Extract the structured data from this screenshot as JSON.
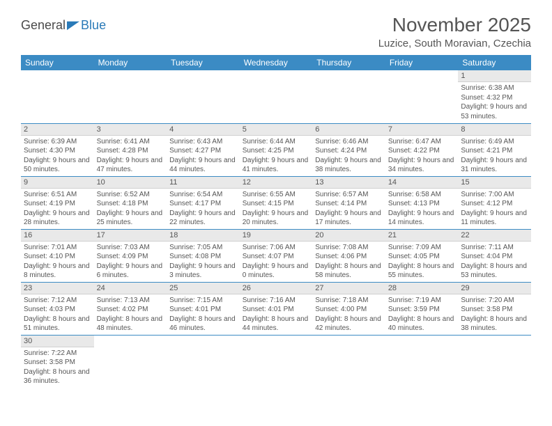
{
  "logo": {
    "text1": "General",
    "text2": "Blue"
  },
  "title": "November 2025",
  "location": "Luzice, South Moravian, Czechia",
  "colors": {
    "header_bg": "#3b8bc4",
    "header_text": "#ffffff",
    "daynum_bg": "#e9e9e9",
    "border": "#3b8bc4",
    "text": "#555555",
    "logo_blue": "#2a7ab8"
  },
  "weekdays": [
    "Sunday",
    "Monday",
    "Tuesday",
    "Wednesday",
    "Thursday",
    "Friday",
    "Saturday"
  ],
  "weeks": [
    [
      null,
      null,
      null,
      null,
      null,
      null,
      {
        "n": "1",
        "sr": "6:38 AM",
        "ss": "4:32 PM",
        "dl": "9 hours and 53 minutes."
      }
    ],
    [
      {
        "n": "2",
        "sr": "6:39 AM",
        "ss": "4:30 PM",
        "dl": "9 hours and 50 minutes."
      },
      {
        "n": "3",
        "sr": "6:41 AM",
        "ss": "4:28 PM",
        "dl": "9 hours and 47 minutes."
      },
      {
        "n": "4",
        "sr": "6:43 AM",
        "ss": "4:27 PM",
        "dl": "9 hours and 44 minutes."
      },
      {
        "n": "5",
        "sr": "6:44 AM",
        "ss": "4:25 PM",
        "dl": "9 hours and 41 minutes."
      },
      {
        "n": "6",
        "sr": "6:46 AM",
        "ss": "4:24 PM",
        "dl": "9 hours and 38 minutes."
      },
      {
        "n": "7",
        "sr": "6:47 AM",
        "ss": "4:22 PM",
        "dl": "9 hours and 34 minutes."
      },
      {
        "n": "8",
        "sr": "6:49 AM",
        "ss": "4:21 PM",
        "dl": "9 hours and 31 minutes."
      }
    ],
    [
      {
        "n": "9",
        "sr": "6:51 AM",
        "ss": "4:19 PM",
        "dl": "9 hours and 28 minutes."
      },
      {
        "n": "10",
        "sr": "6:52 AM",
        "ss": "4:18 PM",
        "dl": "9 hours and 25 minutes."
      },
      {
        "n": "11",
        "sr": "6:54 AM",
        "ss": "4:17 PM",
        "dl": "9 hours and 22 minutes."
      },
      {
        "n": "12",
        "sr": "6:55 AM",
        "ss": "4:15 PM",
        "dl": "9 hours and 20 minutes."
      },
      {
        "n": "13",
        "sr": "6:57 AM",
        "ss": "4:14 PM",
        "dl": "9 hours and 17 minutes."
      },
      {
        "n": "14",
        "sr": "6:58 AM",
        "ss": "4:13 PM",
        "dl": "9 hours and 14 minutes."
      },
      {
        "n": "15",
        "sr": "7:00 AM",
        "ss": "4:12 PM",
        "dl": "9 hours and 11 minutes."
      }
    ],
    [
      {
        "n": "16",
        "sr": "7:01 AM",
        "ss": "4:10 PM",
        "dl": "9 hours and 8 minutes."
      },
      {
        "n": "17",
        "sr": "7:03 AM",
        "ss": "4:09 PM",
        "dl": "9 hours and 6 minutes."
      },
      {
        "n": "18",
        "sr": "7:05 AM",
        "ss": "4:08 PM",
        "dl": "9 hours and 3 minutes."
      },
      {
        "n": "19",
        "sr": "7:06 AM",
        "ss": "4:07 PM",
        "dl": "9 hours and 0 minutes."
      },
      {
        "n": "20",
        "sr": "7:08 AM",
        "ss": "4:06 PM",
        "dl": "8 hours and 58 minutes."
      },
      {
        "n": "21",
        "sr": "7:09 AM",
        "ss": "4:05 PM",
        "dl": "8 hours and 55 minutes."
      },
      {
        "n": "22",
        "sr": "7:11 AM",
        "ss": "4:04 PM",
        "dl": "8 hours and 53 minutes."
      }
    ],
    [
      {
        "n": "23",
        "sr": "7:12 AM",
        "ss": "4:03 PM",
        "dl": "8 hours and 51 minutes."
      },
      {
        "n": "24",
        "sr": "7:13 AM",
        "ss": "4:02 PM",
        "dl": "8 hours and 48 minutes."
      },
      {
        "n": "25",
        "sr": "7:15 AM",
        "ss": "4:01 PM",
        "dl": "8 hours and 46 minutes."
      },
      {
        "n": "26",
        "sr": "7:16 AM",
        "ss": "4:01 PM",
        "dl": "8 hours and 44 minutes."
      },
      {
        "n": "27",
        "sr": "7:18 AM",
        "ss": "4:00 PM",
        "dl": "8 hours and 42 minutes."
      },
      {
        "n": "28",
        "sr": "7:19 AM",
        "ss": "3:59 PM",
        "dl": "8 hours and 40 minutes."
      },
      {
        "n": "29",
        "sr": "7:20 AM",
        "ss": "3:58 PM",
        "dl": "8 hours and 38 minutes."
      }
    ],
    [
      {
        "n": "30",
        "sr": "7:22 AM",
        "ss": "3:58 PM",
        "dl": "8 hours and 36 minutes."
      },
      null,
      null,
      null,
      null,
      null,
      null
    ]
  ],
  "labels": {
    "sunrise": "Sunrise:",
    "sunset": "Sunset:",
    "daylight": "Daylight:"
  }
}
